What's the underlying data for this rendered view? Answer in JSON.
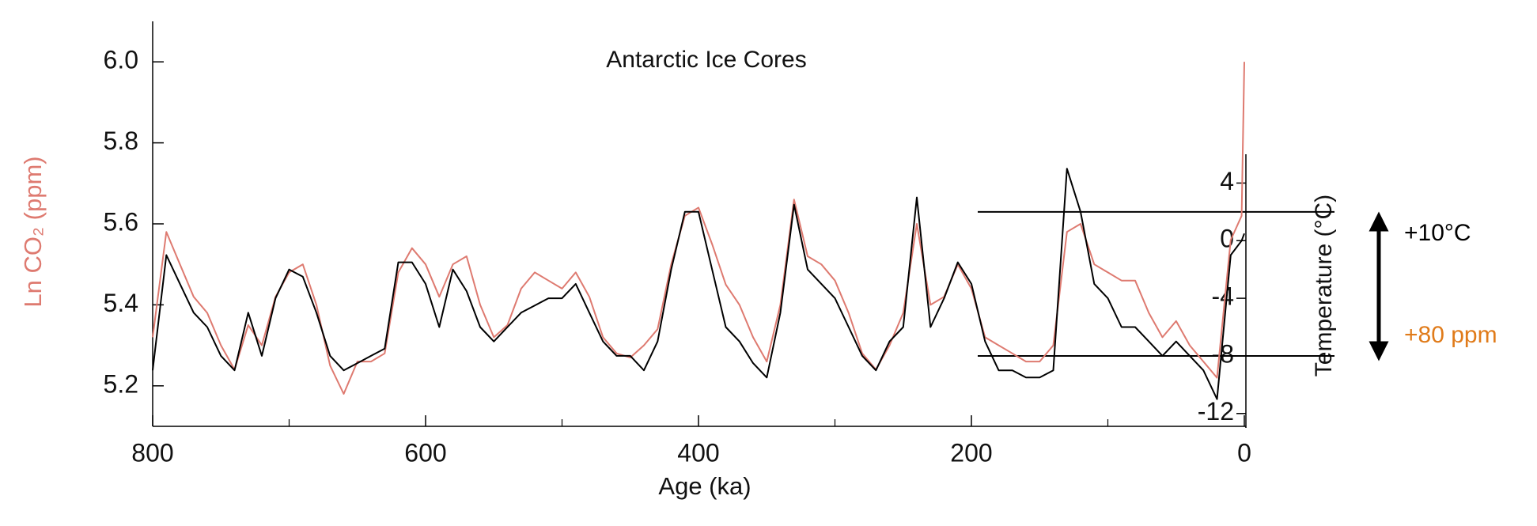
{
  "chart_data": {
    "type": "line",
    "title": "Antarctic Ice Cores",
    "x_label": "Age (ka)",
    "y_label": "Ln CO₂ (ppm)",
    "y2_label": "Temperature (°C)",
    "xlim": [
      800,
      0
    ],
    "xticks": [
      800,
      600,
      400,
      200,
      0
    ],
    "xminor_ticks": [
      700,
      500,
      300,
      100
    ],
    "ylim": [
      5.1,
      6.1
    ],
    "yticks": [
      {
        "value": 6,
        "label": "6.0"
      },
      5.8,
      5.6,
      5.4,
      5.2
    ],
    "y2lim": [
      -13,
      6
    ],
    "y2ticks": [
      4,
      0,
      -4,
      -8,
      -12
    ],
    "y2_reference_lines": [
      2,
      -8
    ],
    "annotations": [
      {
        "text": "+10°C",
        "color": "#000000"
      },
      {
        "text": "+80 ppm",
        "color": "#e07b1a"
      }
    ],
    "x": [
      800,
      790,
      780,
      770,
      760,
      750,
      740,
      730,
      720,
      710,
      700,
      690,
      680,
      670,
      660,
      650,
      640,
      630,
      620,
      610,
      600,
      590,
      580,
      570,
      560,
      550,
      540,
      530,
      520,
      510,
      500,
      490,
      480,
      470,
      460,
      450,
      440,
      430,
      420,
      410,
      400,
      390,
      380,
      370,
      360,
      350,
      340,
      330,
      320,
      310,
      300,
      290,
      280,
      270,
      260,
      250,
      240,
      230,
      220,
      210,
      200,
      190,
      180,
      170,
      160,
      150,
      140,
      130,
      120,
      110,
      100,
      90,
      80,
      70,
      60,
      50,
      40,
      30,
      20,
      10,
      2,
      0
    ],
    "series": [
      {
        "color": "#de7a70",
        "axis": "y",
        "values": [
          5.32,
          5.58,
          5.5,
          5.42,
          5.38,
          5.3,
          5.24,
          5.35,
          5.3,
          5.42,
          5.48,
          5.5,
          5.4,
          5.25,
          5.18,
          5.26,
          5.26,
          5.28,
          5.48,
          5.54,
          5.5,
          5.42,
          5.5,
          5.52,
          5.4,
          5.32,
          5.35,
          5.44,
          5.48,
          5.46,
          5.44,
          5.48,
          5.42,
          5.32,
          5.28,
          5.27,
          5.3,
          5.34,
          5.5,
          5.62,
          5.64,
          5.55,
          5.45,
          5.4,
          5.32,
          5.26,
          5.4,
          5.66,
          5.52,
          5.5,
          5.46,
          5.38,
          5.28,
          5.24,
          5.3,
          5.38,
          5.6,
          5.4,
          5.42,
          5.5,
          5.44,
          5.32,
          5.3,
          5.28,
          5.26,
          5.26,
          5.3,
          5.58,
          5.6,
          5.5,
          5.48,
          5.46,
          5.46,
          5.38,
          5.32,
          5.36,
          5.3,
          5.26,
          5.22,
          5.56,
          5.62,
          6.0
        ]
      },
      {
        "color": "#000000",
        "axis": "y2",
        "values": [
          -9,
          -1,
          -3,
          -5,
          -6,
          -8,
          -9,
          -5,
          -8,
          -4,
          -2,
          -2.5,
          -5,
          -8,
          -9,
          -8.5,
          -8,
          -7.5,
          -1.5,
          -1.5,
          -3,
          -6,
          -2,
          -3.5,
          -6,
          -7,
          -6,
          -5,
          -4.5,
          -4,
          -4,
          -3,
          -5,
          -7,
          -8,
          -8,
          -9,
          -7,
          -2,
          2,
          2,
          -2,
          -6,
          -7,
          -8.5,
          -9.5,
          -5,
          2.5,
          -2,
          -3,
          -4,
          -6,
          -8,
          -9,
          -7,
          -6,
          3,
          -6,
          -4,
          -1.5,
          -3,
          -7,
          -9,
          -9,
          -9.5,
          -9.5,
          -9,
          5,
          2,
          -3,
          -4,
          -6,
          -6,
          -7,
          -8,
          -7,
          -8,
          -9,
          -11,
          -1,
          0,
          0.5
        ]
      }
    ]
  }
}
